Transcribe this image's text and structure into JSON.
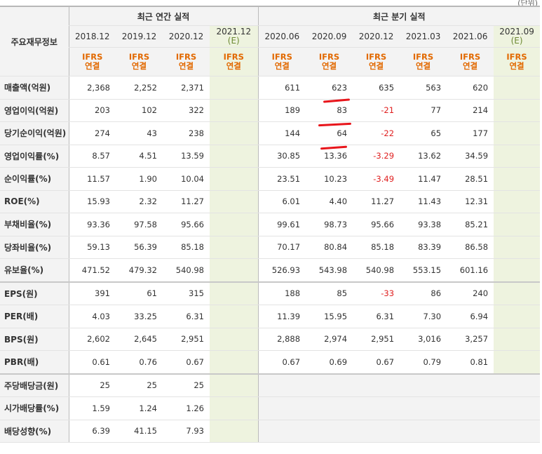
{
  "corner_text": "(단위)",
  "header": {
    "row_label": "주요재무정보",
    "annual_group": "최근 연간 실적",
    "quarter_group": "최근 분기 실적",
    "estimate_mark": "(E)",
    "annual_periods": [
      "2018.12",
      "2019.12",
      "2020.12",
      "2021.12"
    ],
    "quarter_periods": [
      "2020.06",
      "2020.09",
      "2020.12",
      "2021.03",
      "2021.06",
      "2021.09"
    ],
    "accounting_line1": "IFRS",
    "accounting_line2": "연결"
  },
  "rows": [
    {
      "label": "매출액(억원)",
      "annual": [
        "2,368",
        "2,252",
        "2,371",
        ""
      ],
      "quarter": [
        "611",
        "623",
        "635",
        "563",
        "620",
        ""
      ]
    },
    {
      "label": "영업이익(억원)",
      "annual": [
        "203",
        "102",
        "322",
        ""
      ],
      "quarter": [
        "189",
        "83",
        "-21",
        "77",
        "214",
        ""
      ]
    },
    {
      "label": "당기순이익(억원)",
      "annual": [
        "274",
        "43",
        "238",
        ""
      ],
      "quarter": [
        "144",
        "64",
        "-22",
        "65",
        "177",
        ""
      ]
    },
    {
      "label": "영업이익률(%)",
      "annual": [
        "8.57",
        "4.51",
        "13.59",
        ""
      ],
      "quarter": [
        "30.85",
        "13.36",
        "-3.29",
        "13.62",
        "34.59",
        ""
      ]
    },
    {
      "label": "순이익률(%)",
      "annual": [
        "11.57",
        "1.90",
        "10.04",
        ""
      ],
      "quarter": [
        "23.51",
        "10.23",
        "-3.49",
        "11.47",
        "28.51",
        ""
      ]
    },
    {
      "label": "ROE(%)",
      "annual": [
        "15.93",
        "2.32",
        "11.27",
        ""
      ],
      "quarter": [
        "6.01",
        "4.40",
        "11.27",
        "11.43",
        "12.31",
        ""
      ]
    },
    {
      "label": "부채비율(%)",
      "annual": [
        "93.36",
        "97.58",
        "95.66",
        ""
      ],
      "quarter": [
        "99.61",
        "98.73",
        "95.66",
        "93.38",
        "85.21",
        ""
      ]
    },
    {
      "label": "당좌비율(%)",
      "annual": [
        "59.13",
        "56.39",
        "85.18",
        ""
      ],
      "quarter": [
        "70.17",
        "80.84",
        "85.18",
        "83.39",
        "86.58",
        ""
      ]
    },
    {
      "label": "유보율(%)",
      "annual": [
        "471.52",
        "479.32",
        "540.98",
        ""
      ],
      "quarter": [
        "526.93",
        "543.98",
        "540.98",
        "553.15",
        "601.16",
        ""
      ]
    },
    {
      "label": "EPS(원)",
      "annual": [
        "391",
        "61",
        "315",
        ""
      ],
      "quarter": [
        "188",
        "85",
        "-33",
        "86",
        "240",
        ""
      ]
    },
    {
      "label": "PER(배)",
      "annual": [
        "4.03",
        "33.25",
        "6.31",
        ""
      ],
      "quarter": [
        "11.39",
        "15.95",
        "6.31",
        "7.30",
        "6.94",
        ""
      ]
    },
    {
      "label": "BPS(원)",
      "annual": [
        "2,602",
        "2,645",
        "2,951",
        ""
      ],
      "quarter": [
        "2,888",
        "2,974",
        "2,951",
        "3,016",
        "3,257",
        ""
      ]
    },
    {
      "label": "PBR(배)",
      "annual": [
        "0.61",
        "0.76",
        "0.67",
        ""
      ],
      "quarter": [
        "0.67",
        "0.69",
        "0.67",
        "0.79",
        "0.81",
        ""
      ]
    },
    {
      "label": "주당배당금(원)",
      "annual": [
        "25",
        "25",
        "25",
        ""
      ],
      "quarter": [
        "",
        "",
        "",
        "",
        "",
        ""
      ]
    },
    {
      "label": "시가배당률(%)",
      "annual": [
        "1.59",
        "1.24",
        "1.26",
        ""
      ],
      "quarter": [
        "",
        "",
        "",
        "",
        "",
        ""
      ]
    },
    {
      "label": "배당성향(%)",
      "annual": [
        "6.39",
        "41.15",
        "7.93",
        ""
      ],
      "quarter": [
        "",
        "",
        "",
        "",
        "",
        ""
      ]
    }
  ],
  "colors": {
    "negative": "#e02020",
    "accounting": "#e26900",
    "estimate_bg": "#eef3df",
    "header_bg": "#f3f3f3",
    "annotation": "#e8151b"
  }
}
